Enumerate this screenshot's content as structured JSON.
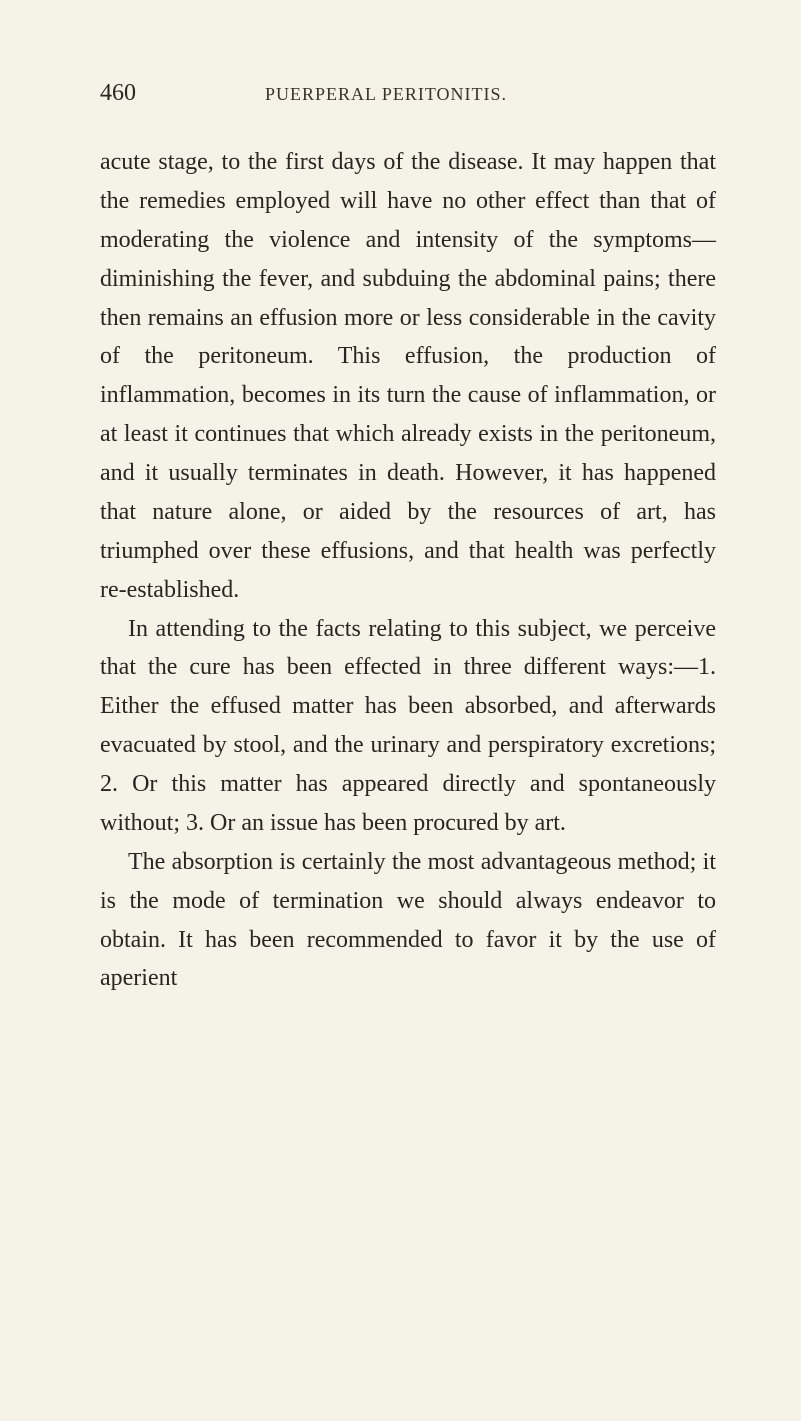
{
  "page": {
    "number": "460",
    "running_title": "PUERPERAL PERITONITIS.",
    "background_color": "#f5f2e8",
    "text_color": "#2a2520",
    "header_color": "#3a3328",
    "body_fontsize": 24,
    "header_fontsize": 18,
    "pagenum_fontsize": 24,
    "line_height": 1.62
  },
  "paragraphs": {
    "p1": "acute stage, to the first days of the disease. It may happen that the remedies employed will have no other effect than that of moderating the violence and intensity of the symptoms—diminishing the fever, and subduing the abdominal pains; there then remains an effusion more or less considerable in the cavity of the peritoneum. This effusion, the production of inflammation, becomes in its turn the cause of inflammation, or at least it continues that which already exists in the peritoneum, and it usually terminates in death. However, it has happened that nature alone, or aided by the resources of art, has triumphed over these effusions, and that health was perfectly re-established.",
    "p2": "In attending to the facts relating to this subject, we perceive that the cure has been effected in three different ways:—1. Either the effused matter has been absorbed, and afterwards evacuated by stool, and the urinary and perspiratory excretions; 2. Or this matter has appeared directly and spontaneously without; 3. Or an issue has been procured by art.",
    "p3": "The absorption is certainly the most advantageous method; it is the mode of termination we should always endeavor to obtain. It has been recommended to favor it by the use of aperient"
  }
}
